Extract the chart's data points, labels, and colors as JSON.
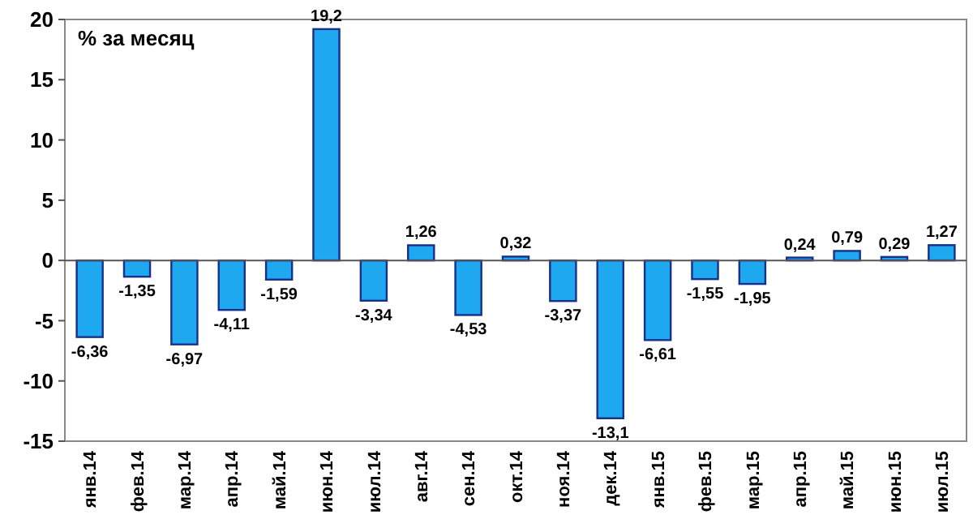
{
  "chart_data": {
    "type": "bar",
    "title": "% за месяц",
    "categories": [
      "янв.14",
      "фев.14",
      "мар.14",
      "апр.14",
      "май.14",
      "июн.14",
      "июл.14",
      "авг.14",
      "сен.14",
      "окт.14",
      "ноя.14",
      "дек.14",
      "янв.15",
      "фев.15",
      "мар.15",
      "апр.15",
      "май.15",
      "июн.15",
      "июл.15"
    ],
    "values": [
      -6.36,
      -1.35,
      -6.97,
      -4.11,
      -1.59,
      19.2,
      -3.34,
      1.26,
      -4.53,
      0.32,
      -3.37,
      -13.1,
      -6.61,
      -1.55,
      -1.95,
      0.24,
      0.79,
      0.29,
      1.27
    ],
    "value_labels": [
      "-6,36",
      "-1,35",
      "-6,97",
      "-4,11",
      "-1,59",
      "19,2",
      "-3,34",
      "1,26",
      "-4,53",
      "0,32",
      "-3,37",
      "-13,1",
      "-6,61",
      "-1,55",
      "-1,95",
      "0,24",
      "0,79",
      "0,29",
      "1,27"
    ],
    "color": "#1ea8f0",
    "ylim": [
      -15,
      20
    ],
    "yticks": [
      -15,
      -10,
      -5,
      0,
      5,
      10,
      15,
      20
    ]
  }
}
